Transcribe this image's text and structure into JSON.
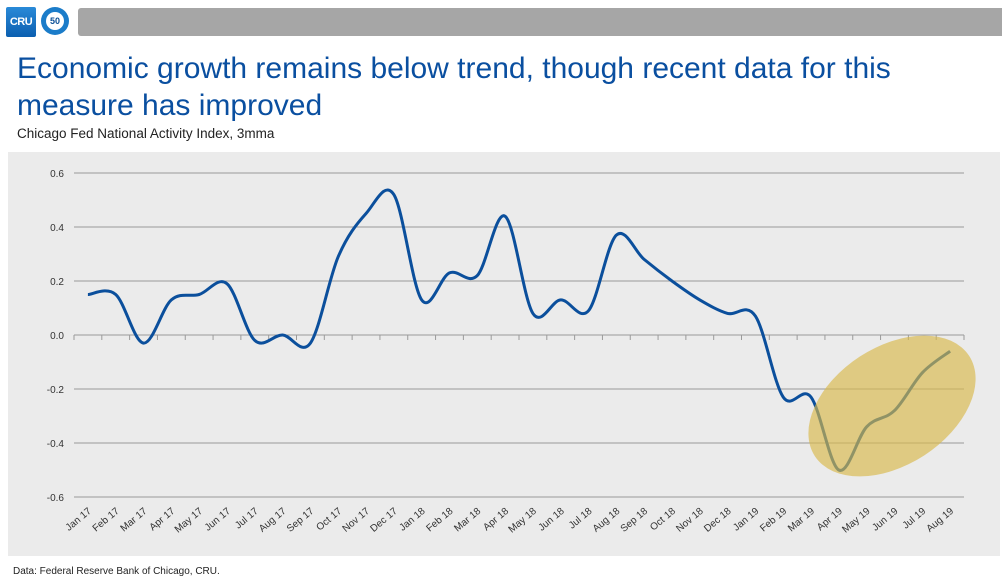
{
  "header": {
    "logo_text": "CRU",
    "badge_text": "50"
  },
  "title": "Economic growth remains below trend, though recent data for this measure has improved",
  "subtitle": "Chicago Fed National Activity Index, 3mma",
  "footer": "Data: Federal Reserve Bank of Chicago, CRU.",
  "colors": {
    "line": "#0b4f9c",
    "highlight": "#d9b84a",
    "title": "#0a4fa0"
  },
  "chart_data": {
    "type": "line",
    "title": "",
    "xlabel": "",
    "ylabel": "",
    "ylim": [
      -0.6,
      0.6
    ],
    "yticks": [
      "0.6",
      "0.4",
      "0.2",
      "0.0",
      "-0.2",
      "-0.4",
      "-0.6"
    ],
    "grid": true,
    "legend": "none",
    "categories": [
      "Jan 17",
      "Feb 17",
      "Mar 17",
      "Apr 17",
      "May 17",
      "Jun 17",
      "Jul 17",
      "Aug 17",
      "Sep 17",
      "Oct 17",
      "Nov 17",
      "Dec 17",
      "Jan 18",
      "Feb 18",
      "Mar 18",
      "Apr 18",
      "May 18",
      "Jun 18",
      "Jul 18",
      "Aug 18",
      "Sep 18",
      "Oct 18",
      "Nov 18",
      "Dec 18",
      "Jan 19",
      "Feb 19",
      "Mar 19",
      "Apr 19",
      "May 19",
      "Jun 19",
      "Jul 19",
      "Aug 19"
    ],
    "values": [
      0.15,
      0.15,
      -0.03,
      0.13,
      0.15,
      0.19,
      -0.02,
      0.0,
      -0.03,
      0.29,
      0.45,
      0.52,
      0.13,
      0.23,
      0.22,
      0.44,
      0.08,
      0.13,
      0.09,
      0.37,
      0.28,
      0.2,
      0.13,
      0.08,
      0.07,
      -0.23,
      -0.23,
      -0.5,
      -0.34,
      -0.28,
      -0.14,
      -0.06
    ],
    "annotation": "highlight ellipse around Mar 19 – Aug 19"
  }
}
